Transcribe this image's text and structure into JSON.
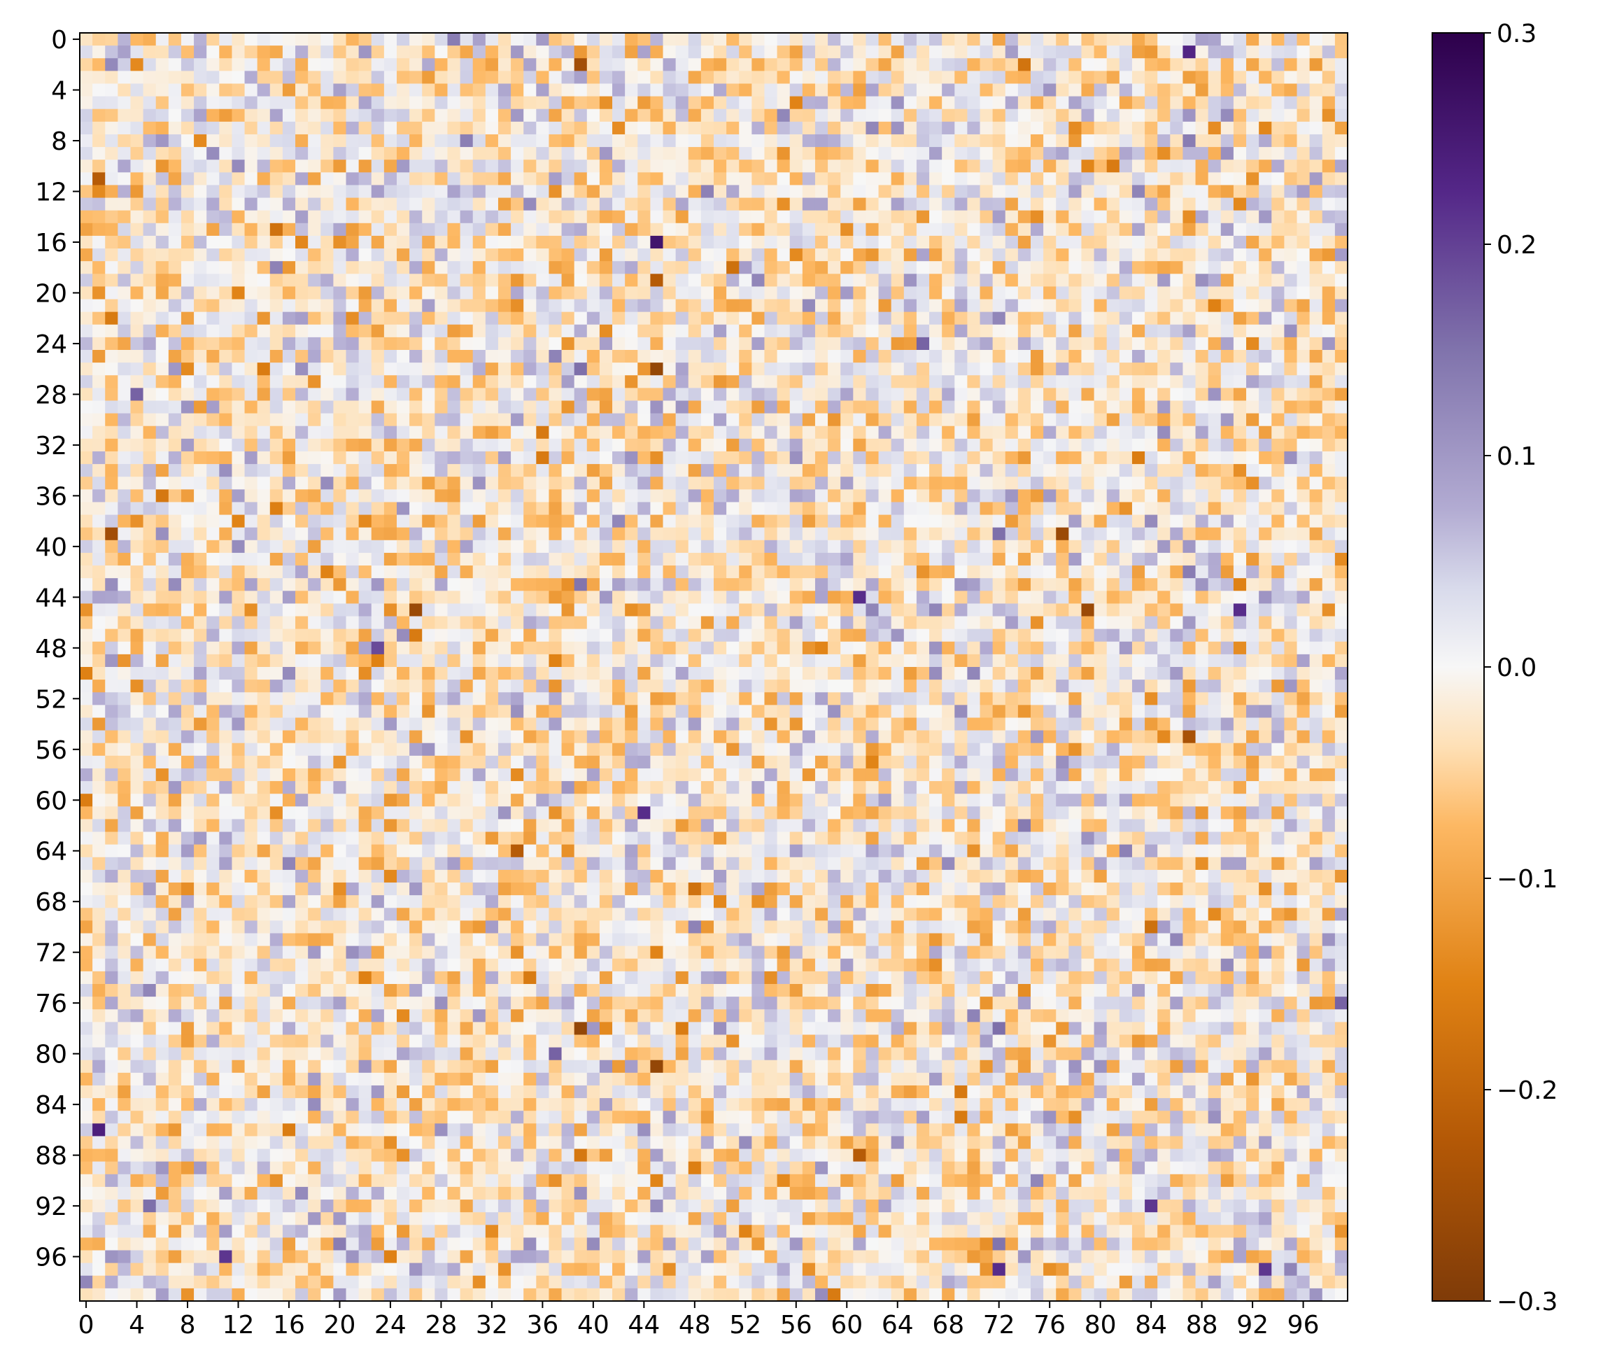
{
  "chart_data": {
    "type": "heatmap",
    "title": "",
    "xlabel": "",
    "ylabel": "",
    "rows": 100,
    "cols": 100,
    "x_ticks": [
      "0",
      "4",
      "8",
      "12",
      "16",
      "20",
      "24",
      "28",
      "32",
      "36",
      "40",
      "44",
      "48",
      "52",
      "56",
      "60",
      "64",
      "68",
      "72",
      "76",
      "80",
      "84",
      "88",
      "92",
      "96"
    ],
    "y_ticks": [
      "0",
      "4",
      "8",
      "12",
      "16",
      "20",
      "24",
      "28",
      "32",
      "36",
      "40",
      "44",
      "48",
      "52",
      "56",
      "60",
      "64",
      "68",
      "72",
      "76",
      "80",
      "84",
      "88",
      "92",
      "96"
    ],
    "colorbar": {
      "colormap": "PuOr",
      "vmin": -0.3,
      "vmax": 0.3,
      "ticks": [
        {
          "value": 0.3,
          "label": "0.3"
        },
        {
          "value": 0.2,
          "label": "0.2"
        },
        {
          "value": 0.1,
          "label": "0.1"
        },
        {
          "value": 0.0,
          "label": "0.0"
        },
        {
          "value": -0.1,
          "label": "−0.1"
        },
        {
          "value": -0.2,
          "label": "−0.2"
        },
        {
          "value": -0.3,
          "label": "−0.3"
        }
      ],
      "stops": [
        {
          "value": -0.3,
          "color": "#7f3b08"
        },
        {
          "value": -0.225,
          "color": "#b35806"
        },
        {
          "value": -0.15,
          "color": "#e08214"
        },
        {
          "value": -0.075,
          "color": "#fdb863"
        },
        {
          "value": -0.0375,
          "color": "#fee0b6"
        },
        {
          "value": 0.0,
          "color": "#f7f7f7"
        },
        {
          "value": 0.0375,
          "color": "#d8daeb"
        },
        {
          "value": 0.075,
          "color": "#b2abd2"
        },
        {
          "value": 0.15,
          "color": "#8073ac"
        },
        {
          "value": 0.225,
          "color": "#542788"
        },
        {
          "value": 0.3,
          "color": "#2d004b"
        }
      ]
    },
    "notable_cells": [
      {
        "row": 1,
        "col": 87,
        "value": 0.23
      },
      {
        "row": 2,
        "col": 39,
        "value": -0.25
      },
      {
        "row": 11,
        "col": 1,
        "value": -0.22
      },
      {
        "row": 16,
        "col": 45,
        "value": 0.26
      },
      {
        "row": 19,
        "col": 45,
        "value": -0.22
      },
      {
        "row": 26,
        "col": 45,
        "value": -0.27
      },
      {
        "row": 39,
        "col": 2,
        "value": -0.25
      },
      {
        "row": 39,
        "col": 77,
        "value": -0.26
      },
      {
        "row": 44,
        "col": 61,
        "value": 0.22
      },
      {
        "row": 45,
        "col": 26,
        "value": -0.26
      },
      {
        "row": 45,
        "col": 79,
        "value": -0.26
      },
      {
        "row": 45,
        "col": 91,
        "value": 0.22
      },
      {
        "row": 55,
        "col": 87,
        "value": -0.24
      },
      {
        "row": 61,
        "col": 44,
        "value": 0.22
      },
      {
        "row": 64,
        "col": 34,
        "value": -0.22
      },
      {
        "row": 78,
        "col": 39,
        "value": -0.27
      },
      {
        "row": 81,
        "col": 45,
        "value": -0.27
      },
      {
        "row": 86,
        "col": 1,
        "value": 0.24
      },
      {
        "row": 88,
        "col": 61,
        "value": -0.22
      },
      {
        "row": 92,
        "col": 84,
        "value": 0.21
      },
      {
        "row": 96,
        "col": 11,
        "value": 0.21
      },
      {
        "row": 97,
        "col": 72,
        "value": 0.22
      },
      {
        "row": 97,
        "col": 93,
        "value": 0.21
      }
    ]
  }
}
